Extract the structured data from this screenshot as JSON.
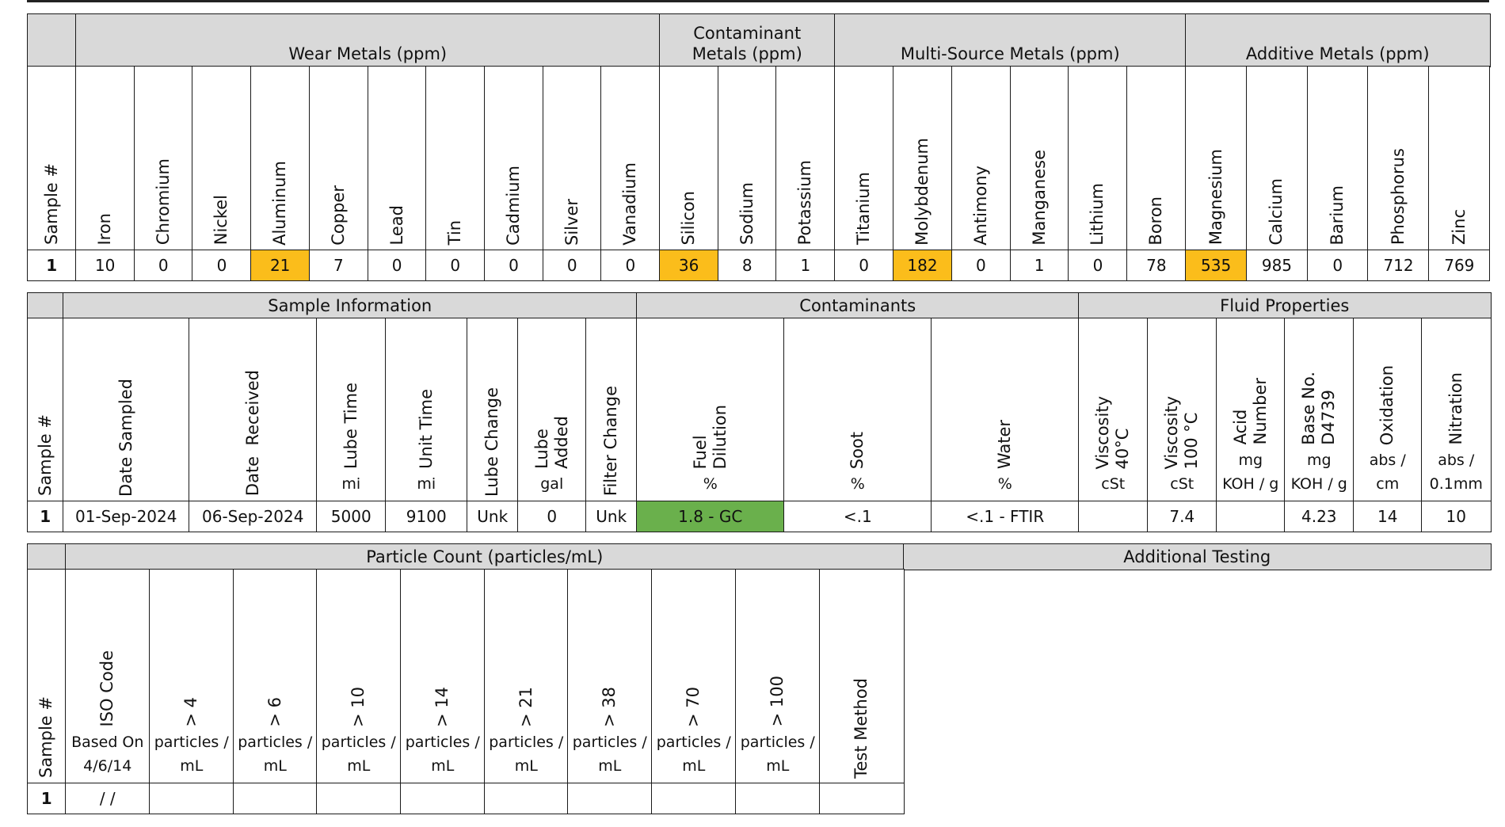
{
  "colors": {
    "header_gray": "#d9d9d9",
    "flag_orange": "#fbbd1b",
    "flag_green": "#6ab04c",
    "border": "#1a1a1a"
  },
  "metals_table": {
    "sample_header": "Sample #",
    "groups": [
      {
        "label": "Wear Metals (ppm)"
      },
      {
        "label": "Contaminant\nMetals (ppm)"
      },
      {
        "label": "Multi-Source Metals (ppm)"
      },
      {
        "label": "Additive Metals (ppm)"
      }
    ],
    "columns": [
      {
        "label": "Iron",
        "value": "10",
        "flag": ""
      },
      {
        "label": "Chromium",
        "value": "0",
        "flag": ""
      },
      {
        "label": "Nickel",
        "value": "0",
        "flag": ""
      },
      {
        "label": "Aluminum",
        "value": "21",
        "flag": "orange"
      },
      {
        "label": "Copper",
        "value": "7",
        "flag": ""
      },
      {
        "label": "Lead",
        "value": "0",
        "flag": ""
      },
      {
        "label": "Tin",
        "value": "0",
        "flag": ""
      },
      {
        "label": "Cadmium",
        "value": "0",
        "flag": ""
      },
      {
        "label": "Silver",
        "value": "0",
        "flag": ""
      },
      {
        "label": "Vanadium",
        "value": "0",
        "flag": ""
      },
      {
        "label": "Silicon",
        "value": "36",
        "flag": "orange"
      },
      {
        "label": "Sodium",
        "value": "8",
        "flag": ""
      },
      {
        "label": "Potassium",
        "value": "1",
        "flag": ""
      },
      {
        "label": "Titanium",
        "value": "0",
        "flag": ""
      },
      {
        "label": "Molybdenum",
        "value": "182",
        "flag": "orange"
      },
      {
        "label": "Antimony",
        "value": "0",
        "flag": ""
      },
      {
        "label": "Manganese",
        "value": "1",
        "flag": ""
      },
      {
        "label": "Lithium",
        "value": "0",
        "flag": ""
      },
      {
        "label": "Boron",
        "value": "78",
        "flag": ""
      },
      {
        "label": "Magnesium",
        "value": "535",
        "flag": "orange"
      },
      {
        "label": "Calcium",
        "value": "985",
        "flag": ""
      },
      {
        "label": "Barium",
        "value": "0",
        "flag": ""
      },
      {
        "label": "Phosphorus",
        "value": "712",
        "flag": ""
      },
      {
        "label": "Zinc",
        "value": "769",
        "flag": ""
      }
    ],
    "sample_number": "1"
  },
  "info_table": {
    "sample_header": "Sample #",
    "groups": [
      {
        "label": "Sample Information"
      },
      {
        "label": "Contaminants"
      },
      {
        "label": "Fluid Properties"
      }
    ],
    "columns": [
      {
        "label": "Date Sampled",
        "unit": "",
        "value": "01-Sep-2024",
        "flag": ""
      },
      {
        "label": "Date  Received",
        "unit": "",
        "value": "06-Sep-2024",
        "flag": ""
      },
      {
        "label": "Lube Time",
        "unit": "mi",
        "value": "5000",
        "flag": ""
      },
      {
        "label": "Unit Time",
        "unit": "mi",
        "value": "9100",
        "flag": ""
      },
      {
        "label": "Lube Change",
        "unit": "",
        "value": "Unk",
        "flag": ""
      },
      {
        "label": "Lube\nAdded",
        "unit": "gal",
        "value": "0",
        "flag": ""
      },
      {
        "label": "Filter Change",
        "unit": "",
        "value": "Unk",
        "flag": ""
      },
      {
        "label": "Fuel\nDilution",
        "unit": "%",
        "value": "1.8 - GC",
        "flag": "green"
      },
      {
        "label": "Soot",
        "unit": "%",
        "value": "<.1",
        "flag": ""
      },
      {
        "label": "Water",
        "unit": "%",
        "value": "<.1 - FTIR",
        "flag": ""
      },
      {
        "label": "Viscosity\n40°C",
        "unit": "cSt",
        "value": "",
        "flag": ""
      },
      {
        "label": "Viscosity\n100 °C",
        "unit": "cSt",
        "value": "7.4",
        "flag": ""
      },
      {
        "label": "Acid\nNumber",
        "unit": "mg\nKOH / g",
        "value": "",
        "flag": ""
      },
      {
        "label": "Base No.\nD4739",
        "unit": "mg\nKOH / g",
        "value": "4.23",
        "flag": ""
      },
      {
        "label": "Oxidation",
        "unit": "abs /\ncm",
        "value": "14",
        "flag": ""
      },
      {
        "label": "Nitration",
        "unit": "abs /\n0.1mm",
        "value": "10",
        "flag": ""
      }
    ],
    "sample_number": "1"
  },
  "particle_table": {
    "sample_header": "Sample #",
    "groups": [
      {
        "label": "Particle Count (particles/mL)"
      },
      {
        "label": "Additional Testing"
      }
    ],
    "columns": [
      {
        "label": "ISO Code",
        "unit": "Based On\n4/6/14",
        "value": "/  /"
      },
      {
        "label": "> 4",
        "unit": "particles /\nmL",
        "value": ""
      },
      {
        "label": "> 6",
        "unit": "particles /\nmL",
        "value": ""
      },
      {
        "label": "> 10",
        "unit": "particles /\nmL",
        "value": ""
      },
      {
        "label": "> 14",
        "unit": "particles /\nmL",
        "value": ""
      },
      {
        "label": "> 21",
        "unit": "particles /\nmL",
        "value": ""
      },
      {
        "label": "> 38",
        "unit": "particles /\nmL",
        "value": ""
      },
      {
        "label": "> 70",
        "unit": "particles /\nmL",
        "value": ""
      },
      {
        "label": "> 100",
        "unit": "particles /\nmL",
        "value": ""
      },
      {
        "label": "Test Method",
        "unit": "",
        "value": ""
      }
    ],
    "sample_number": "1"
  }
}
